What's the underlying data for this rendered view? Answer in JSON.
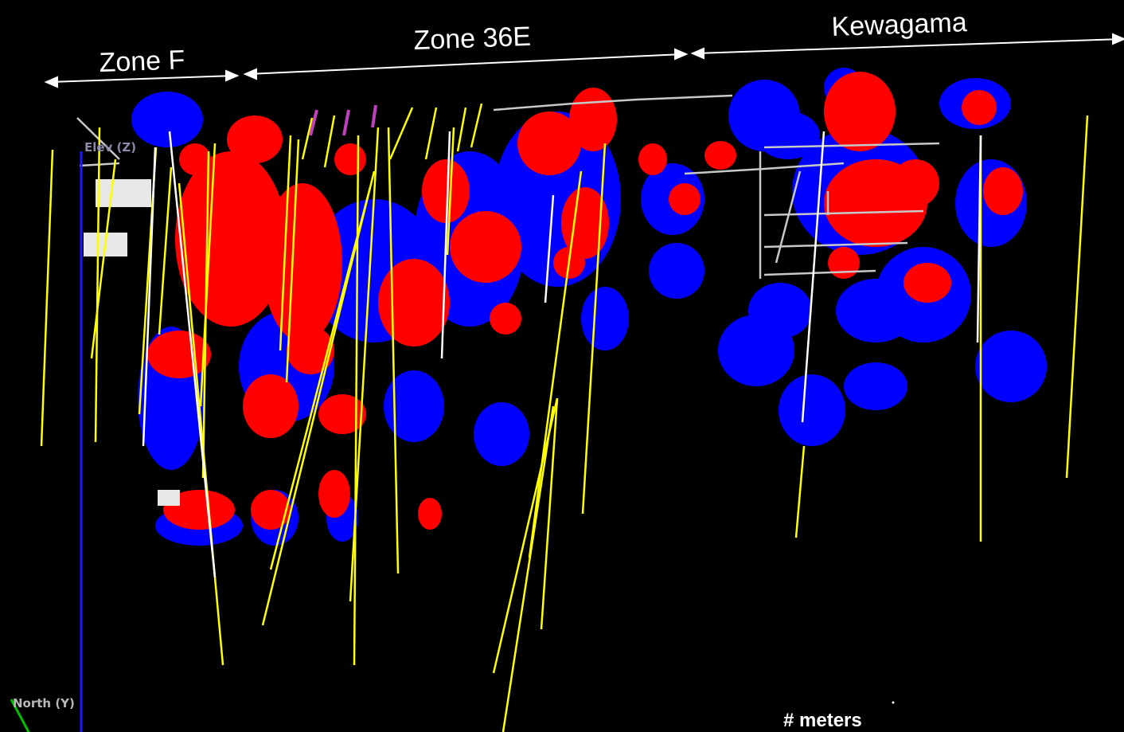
{
  "zones": [
    {
      "label": "Zone F"
    },
    {
      "label": "Zone 36E"
    },
    {
      "label": "Kewagama"
    }
  ],
  "axes": {
    "elevation_label": "Elev (Z)",
    "north_label": "North (Y)"
  },
  "scale_label": "# meters",
  "colors": {
    "background": "#000000",
    "high_grade": "#ff0000",
    "low_grade": "#0000ff",
    "drillhole": "#ffff00",
    "workings": "#c8c8c8"
  }
}
